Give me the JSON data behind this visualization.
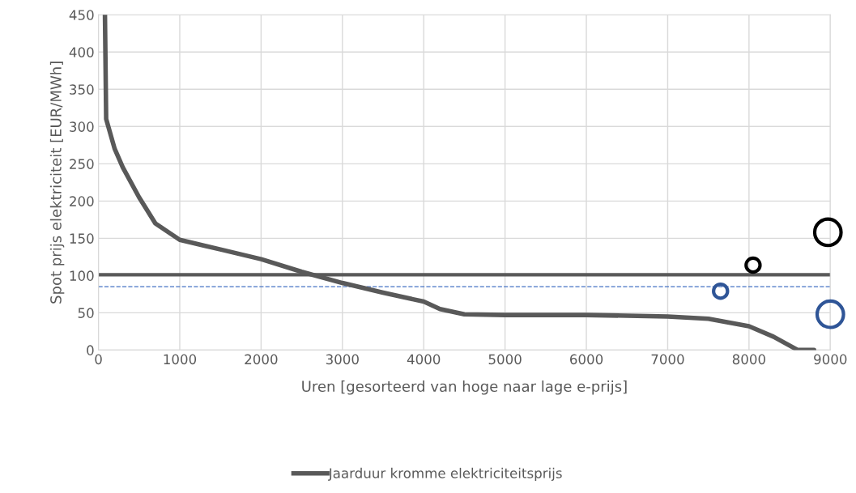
{
  "chart_data": {
    "type": "line",
    "xlabel": "Uren [gesorteerd van hoge naar lage e-prijs]",
    "ylabel": "Spot prijs elektriciteit [EUR/MWh]",
    "xlim": [
      0,
      9000
    ],
    "xticks": [
      0,
      1000,
      2000,
      3000,
      4000,
      5000,
      6000,
      7000,
      8000,
      9000
    ],
    "ylim": [
      0,
      450
    ],
    "yticks": [
      0,
      50,
      100,
      150,
      200,
      250,
      300,
      350,
      400,
      450
    ],
    "grid": true,
    "legend": "bottom",
    "series": [
      {
        "name": "Jaarduur kromme elektriciteitsprijs",
        "color": "#595959",
        "x": [
          80,
          95,
          200,
          300,
          500,
          700,
          1000,
          1500,
          2000,
          2500,
          3000,
          3500,
          4000,
          4200,
          4500,
          5000,
          6000,
          7000,
          7500,
          8000,
          8300,
          8600,
          8800
        ],
        "values": [
          450,
          310,
          270,
          245,
          205,
          170,
          148,
          135,
          122,
          105,
          90,
          77,
          65,
          55,
          48,
          47,
          47,
          45,
          42,
          32,
          18,
          0,
          0
        ]
      },
      {
        "color": "#000000",
        "type": "bubble",
        "x": [
          8050,
          8970
        ],
        "values": [
          114,
          158
        ],
        "sizes": [
          0.28,
          1
        ]
      },
      {
        "color": "#2f5597",
        "type": "bubble",
        "x": [
          7650,
          9000
        ],
        "values": [
          79,
          48
        ],
        "sizes": [
          0.28,
          1
        ]
      }
    ],
    "ref_lines": [
      {
        "axis": "y",
        "value": 101,
        "label": null,
        "color": "#595959",
        "line_style": "solid"
      },
      {
        "axis": "y",
        "value": 85,
        "label": null,
        "color": "#4472c4",
        "line_style": "dashed"
      }
    ]
  }
}
